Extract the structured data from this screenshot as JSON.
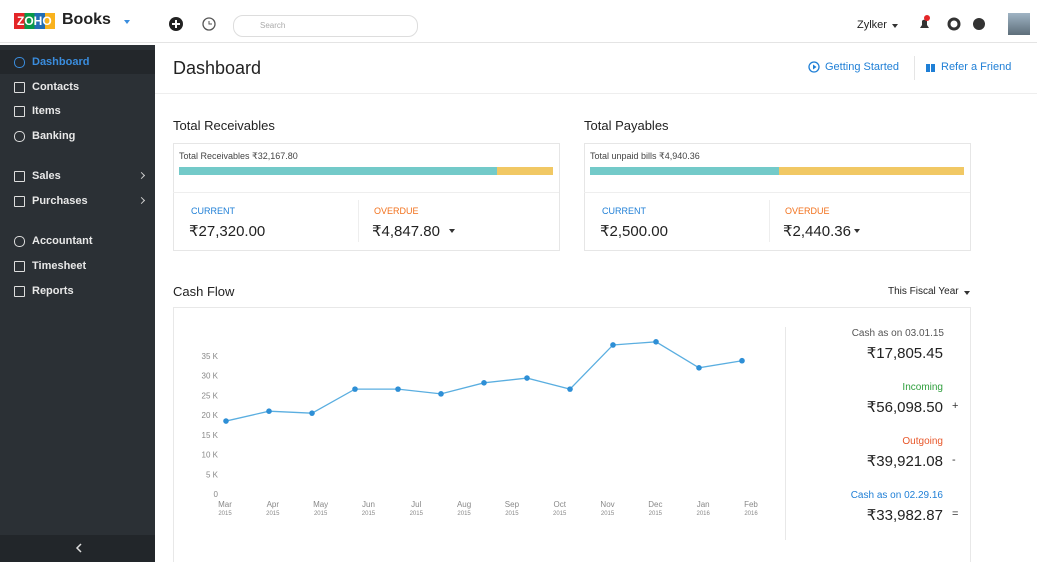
{
  "top_bar": {
    "logo": "ZOHO",
    "product": "Books",
    "search_placeholder": "Search",
    "org": "Zylker"
  },
  "sidebar": {
    "items": [
      "Dashboard",
      "Contacts",
      "Items",
      "Banking",
      "Sales",
      "Purchases",
      "Accountant",
      "Timesheet",
      "Reports"
    ]
  },
  "header": {
    "title": "Dashboard",
    "links": [
      "Getting Started",
      "Refer a Friend"
    ]
  },
  "receivables": {
    "title": "Total Receivables",
    "summary": "Total Receivables ₹32,167.80",
    "current": {
      "label": "CURRENT",
      "value": 27320,
      "value_label": "₹27,320.00"
    },
    "overdue": {
      "label": "OVERDUE",
      "value": 4847.8,
      "value_label": "₹4,847.80"
    }
  },
  "payables": {
    "title": "Total Payables",
    "summary": "Total unpaid bills ₹4,940.36",
    "current": {
      "label": "CURRENT",
      "value": 2500,
      "value_label": "₹2,500.00"
    },
    "overdue": {
      "label": "OVERDUE",
      "value": 2440.36,
      "value_label": "₹2,440.36"
    }
  },
  "cash_flow": {
    "title": "Cash Flow",
    "period": "This Fiscal Year",
    "chart": {
      "type": "line",
      "color": "#5aaee0",
      "values": [
        18500,
        21000,
        20500,
        26600,
        26600,
        25400,
        28200,
        29400,
        26600,
        37800,
        38600,
        32000,
        33800
      ],
      "xticks": [
        {
          "month": "Mar",
          "year": "2015"
        },
        {
          "month": "Apr",
          "year": "2015"
        },
        {
          "month": "May",
          "year": "2015"
        },
        {
          "month": "Jun",
          "year": "2015"
        },
        {
          "month": "Jul",
          "year": "2015"
        },
        {
          "month": "Aug",
          "year": "2015"
        },
        {
          "month": "Sep",
          "year": "2015"
        },
        {
          "month": "Oct",
          "year": "2015"
        },
        {
          "month": "Nov",
          "year": "2015"
        },
        {
          "month": "Dec",
          "year": "2015"
        },
        {
          "month": "Jan",
          "year": "2016"
        },
        {
          "month": "Feb",
          "year": "2016"
        }
      ],
      "ylim": [
        0,
        35000
      ],
      "yticks": [
        0,
        {
          "value": 5000,
          "label": "5 K"
        },
        {
          "value": 10000,
          "label": "10 K"
        },
        {
          "value": 15000,
          "label": "15 K"
        },
        {
          "value": 20000,
          "label": "20 K"
        },
        {
          "value": 25000,
          "label": "25 K"
        },
        {
          "value": 30000,
          "label": "30 K"
        },
        {
          "value": 35000,
          "label": "35 K"
        }
      ]
    },
    "summary": [
      {
        "label": "Cash as on 03.01.15",
        "amount": "₹17,805.45"
      },
      {
        "label": "Incoming",
        "amount": "₹56,098.50",
        "sign": "+"
      },
      {
        "label": "Outgoing",
        "amount": "₹39,921.08",
        "sign": "-"
      },
      {
        "label": "Cash as on 02.29.16",
        "amount": "₹33,982.87",
        "sign": "="
      }
    ]
  }
}
